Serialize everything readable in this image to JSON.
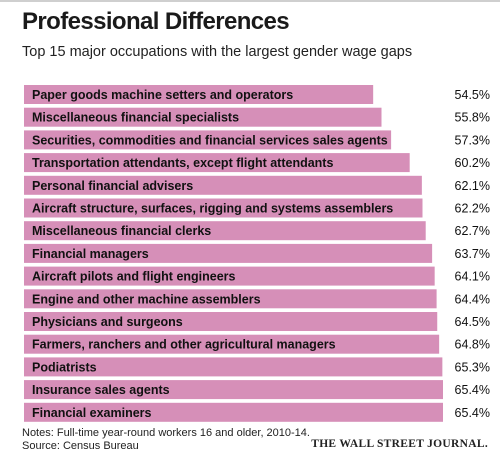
{
  "header": {
    "title": "Professional Differences",
    "subtitle": "Top 15 major occupations with the largest gender wage gaps"
  },
  "footer": {
    "notes": "Notes: Full-time year-round workers 16 and older, 2010-14.",
    "source": "Source: Census Bureau",
    "brand": "THE WALL STREET JOURNAL."
  },
  "colors": {
    "bar": "#d68fb8",
    "text": "#111111"
  },
  "chart_data": {
    "type": "bar",
    "orientation": "horizontal",
    "value_suffix": "%",
    "xlim": [
      0,
      65.4
    ],
    "grid": false,
    "categories": [
      "Paper goods machine setters and operators",
      "Miscellaneous financial specialists",
      "Securities, commodities and financial services sales agents",
      "Transportation attendants, except flight attendants",
      "Personal financial advisers",
      "Aircraft structure, surfaces, rigging and systems assemblers",
      "Miscellaneous financial clerks",
      "Financial managers",
      "Aircraft pilots and flight engineers",
      "Engine and other machine assemblers",
      "Physicians and surgeons",
      "Farmers, ranchers and other agricultural managers",
      "Podiatrists",
      "Insurance sales agents",
      "Financial examiners"
    ],
    "values": [
      54.5,
      55.8,
      57.3,
      60.2,
      62.1,
      62.2,
      62.7,
      63.7,
      64.1,
      64.4,
      64.5,
      64.8,
      65.3,
      65.4,
      65.4
    ],
    "value_labels": [
      "54.5%",
      "55.8%",
      "57.3%",
      "60.2%",
      "62.1%",
      "62.2%",
      "62.7%",
      "63.7%",
      "64.1%",
      "64.4%",
      "64.5%",
      "64.8%",
      "65.3%",
      "65.4%",
      "65.4%"
    ]
  }
}
